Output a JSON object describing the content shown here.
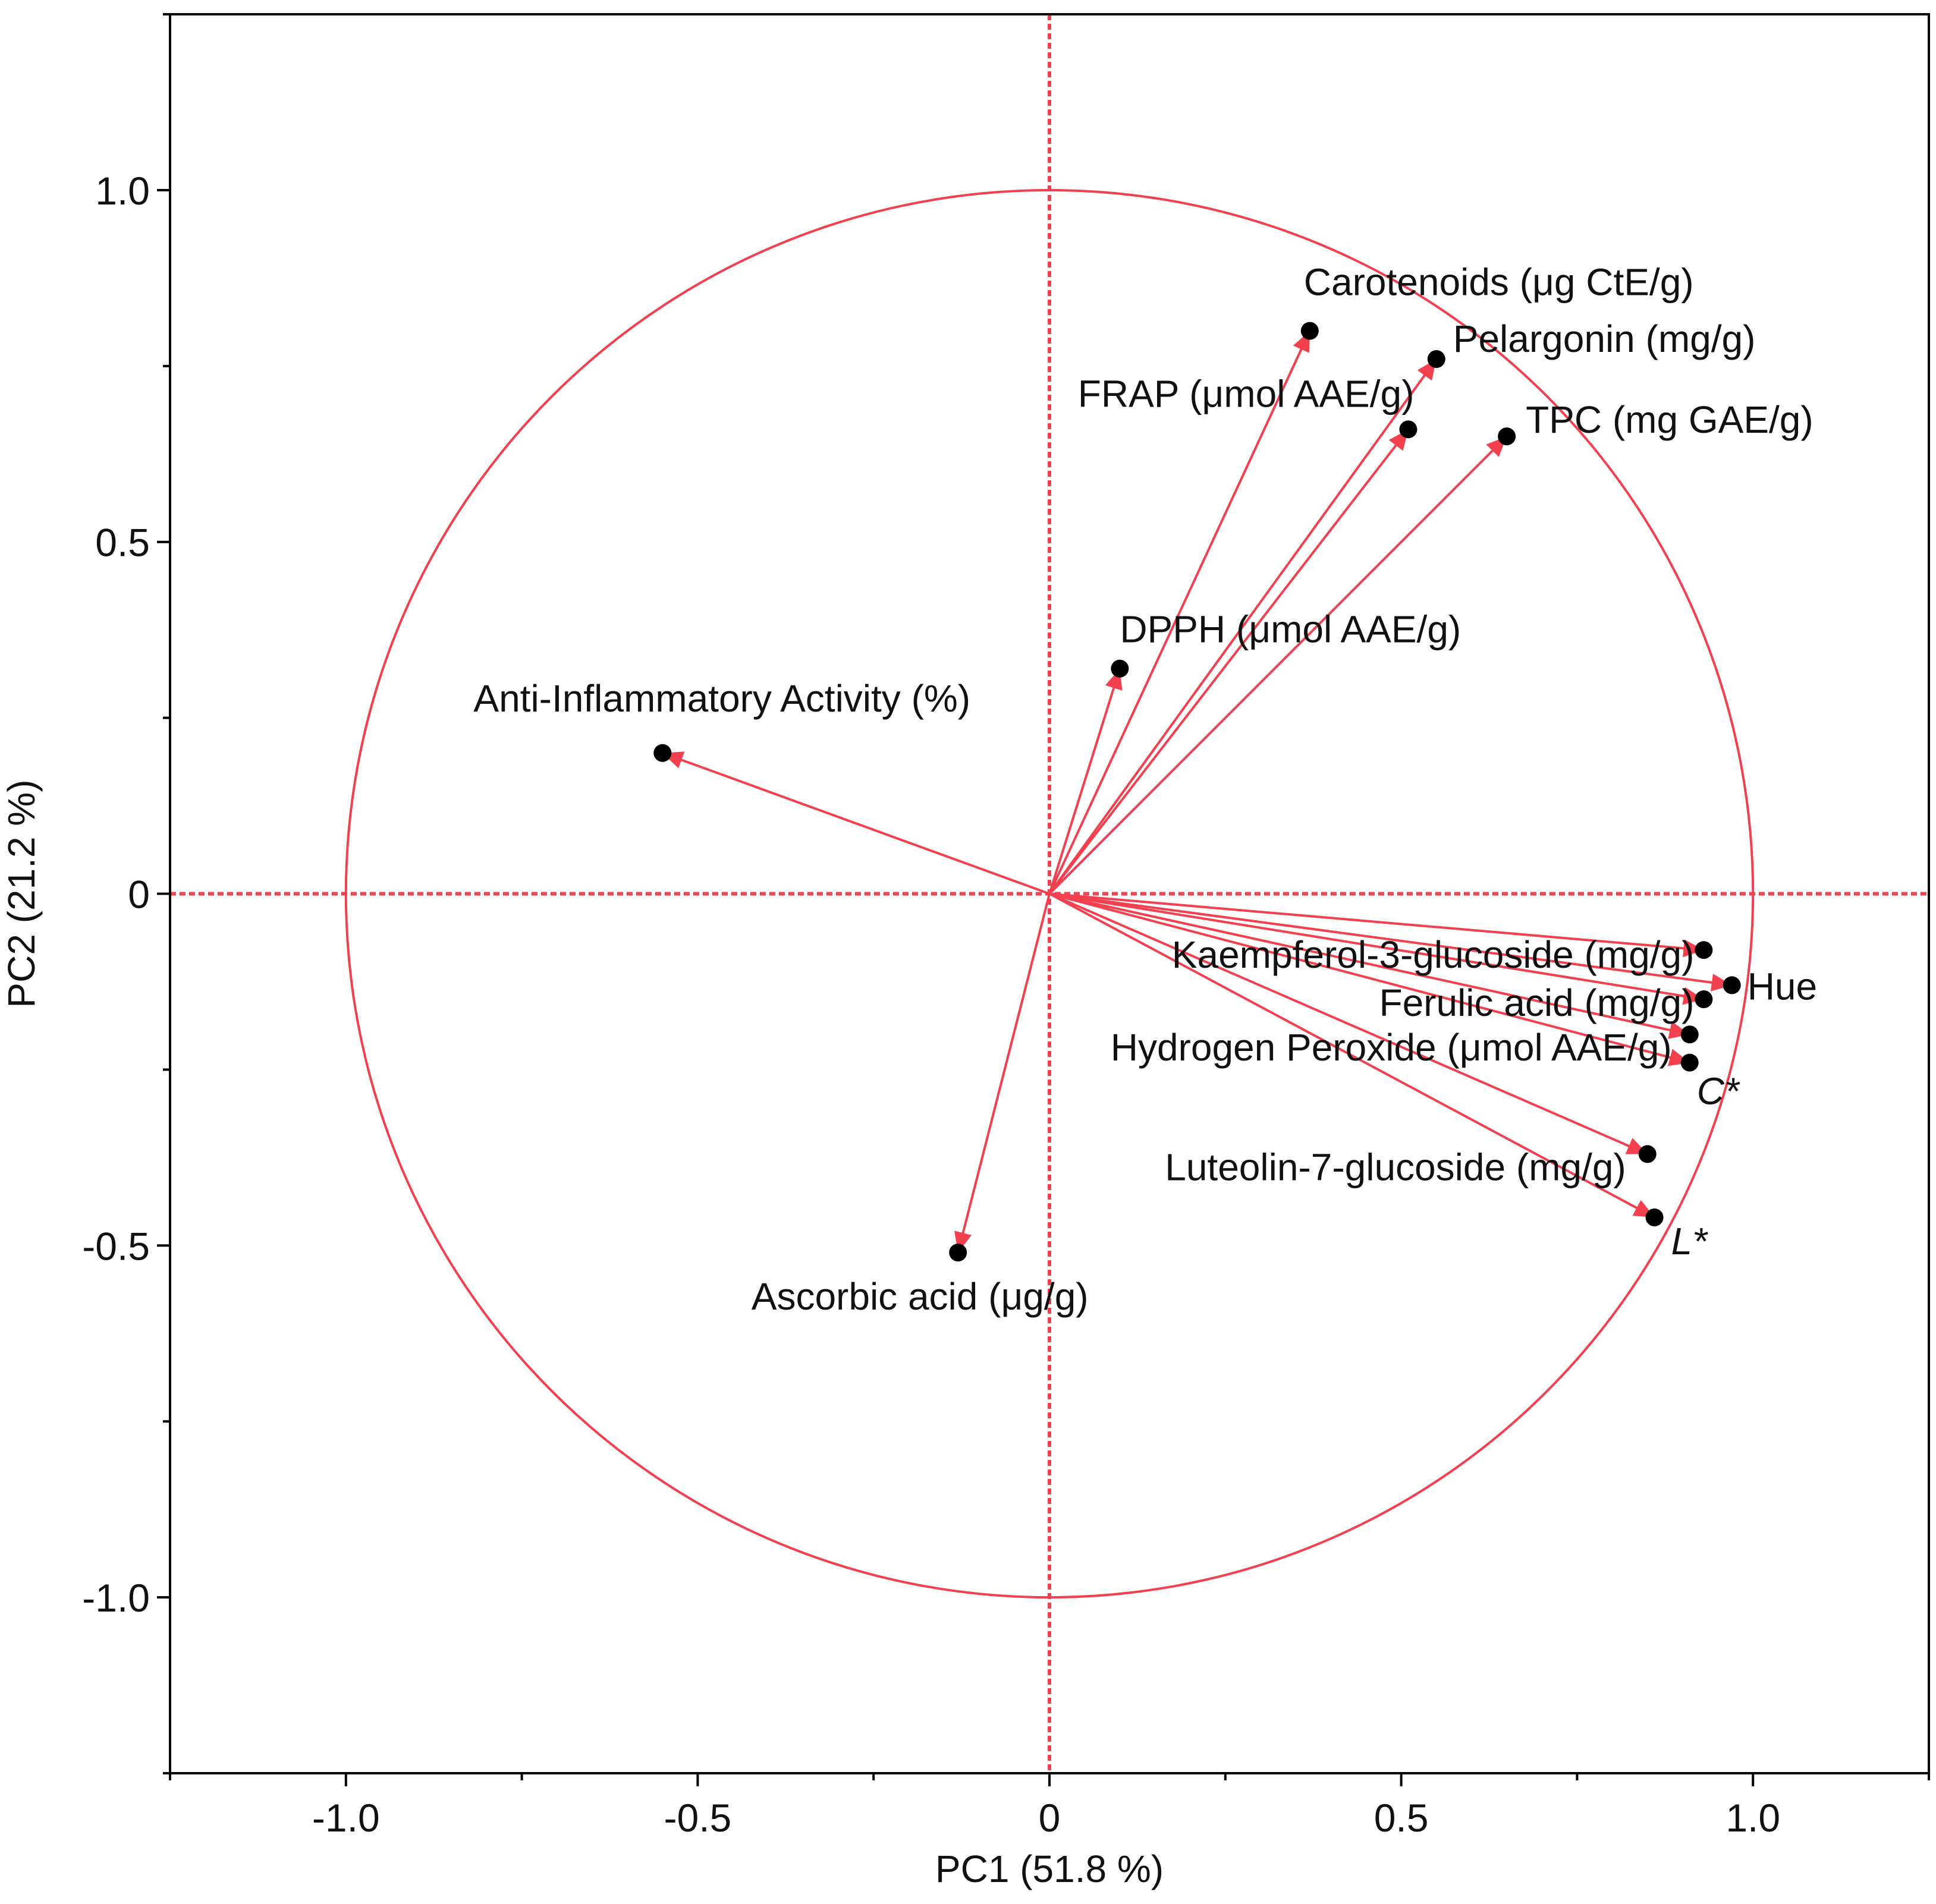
{
  "colors": {
    "accent": "#f2404f",
    "frame": "#000000",
    "point": "#000000"
  },
  "chart_data": {
    "type": "scatter",
    "subtype": "pca-loading-plot",
    "title": "",
    "xlabel": "PC1  (51.8 %)",
    "ylabel": "PC2  (21.2 %)",
    "xlim": [
      -1.25,
      1.25
    ],
    "ylim": [
      -1.25,
      1.25
    ],
    "xticks": [
      {
        "value": -1.0,
        "label": "-1.0"
      },
      {
        "value": -0.5,
        "label": "-0.5"
      },
      {
        "value": 0,
        "label": "0"
      },
      {
        "value": 0.5,
        "label": "0.5"
      },
      {
        "value": 1.0,
        "label": "1.0"
      }
    ],
    "yticks": [
      {
        "value": 1.0,
        "label": "1.0"
      },
      {
        "value": 0.5,
        "label": "0.5"
      },
      {
        "value": 0,
        "label": "0"
      },
      {
        "value": -0.5,
        "label": "-0.5"
      },
      {
        "value": -1.0,
        "label": "-1.0"
      }
    ],
    "unit_circle": true,
    "zero_lines": true,
    "variables": [
      {
        "label": "Carotenoids (μg CtE/g)",
        "x": 0.37,
        "y": 0.8,
        "label_anchor": "start",
        "italic": false
      },
      {
        "label": "Pelargonin (mg/g)",
        "x": 0.55,
        "y": 0.76,
        "label_anchor": "start",
        "italic": false
      },
      {
        "label": "FRAP (μmol AAE/g)",
        "x": 0.51,
        "y": 0.66,
        "label_anchor": "end",
        "italic": false
      },
      {
        "label": "TPC (mg GAE/g)",
        "x": 0.65,
        "y": 0.65,
        "label_anchor": "start",
        "italic": false
      },
      {
        "label": "DPPH (μmol AAE/g)",
        "x": 0.1,
        "y": 0.32,
        "label_anchor": "start",
        "italic": false
      },
      {
        "label": "Anti-Inflammatory Activity (%)",
        "x": -0.55,
        "y": 0.2,
        "label_anchor": "middle",
        "italic": false
      },
      {
        "label": "Hue",
        "x": 0.97,
        "y": -0.13,
        "label_anchor": "start",
        "italic": false
      },
      {
        "label": "Kaempferol-3-glucoside (mg/g)",
        "x": 0.93,
        "y": -0.08,
        "label_anchor": "end",
        "italic": false
      },
      {
        "label": "Ferulic acid (mg/g)",
        "x": 0.93,
        "y": -0.15,
        "label_anchor": "end",
        "italic": false
      },
      {
        "label": "Hydrogen Peroxide (μmol AAE/g)",
        "x": 0.91,
        "y": -0.2,
        "label_anchor": "end",
        "italic": false
      },
      {
        "label": "C*",
        "x": 0.91,
        "y": -0.24,
        "label_anchor": "start",
        "italic": true
      },
      {
        "label": "Luteolin-7-glucoside (mg/g)",
        "x": 0.85,
        "y": -0.37,
        "label_anchor": "end",
        "italic": false
      },
      {
        "label": "L*",
        "x": 0.86,
        "y": -0.46,
        "label_anchor": "start",
        "italic": true
      },
      {
        "label": "Ascorbic acid (μg/g)",
        "x": -0.13,
        "y": -0.51,
        "label_anchor": "middle",
        "italic": false
      }
    ]
  }
}
